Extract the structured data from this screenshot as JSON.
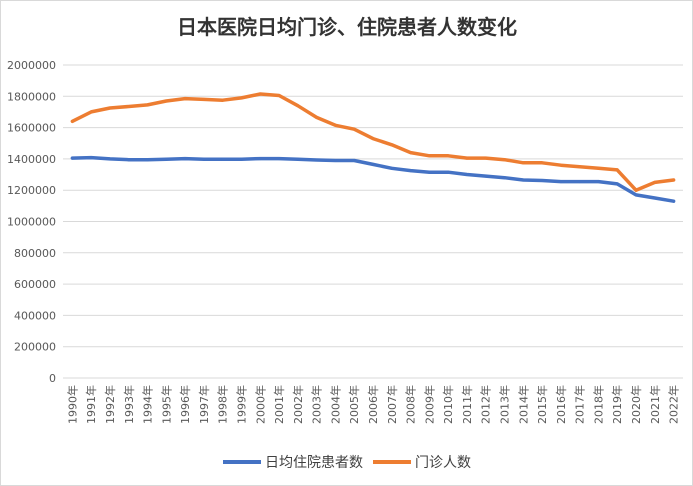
{
  "chart_data": {
    "type": "line",
    "title": "日本医院日均门诊、住院患者人数变化",
    "xlabel": "",
    "ylabel": "",
    "ylim": [
      0,
      2000000
    ],
    "yticks": [
      "0",
      "200000",
      "400000",
      "600000",
      "800000",
      "1000000",
      "1200000",
      "1400000",
      "1600000",
      "1800000",
      "2000000"
    ],
    "grid": true,
    "legend_position": "bottom",
    "categories": [
      "1990年",
      "1991年",
      "1992年",
      "1993年",
      "1994年",
      "1995年",
      "1996年",
      "1997年",
      "1998年",
      "1999年",
      "2000年",
      "2001年",
      "2002年",
      "2003年",
      "2004年",
      "2005年",
      "2006年",
      "2007年",
      "2008年",
      "2009年",
      "2010年",
      "2011年",
      "2012年",
      "2013年",
      "2014年",
      "2015年",
      "2016年",
      "2017年",
      "2018年",
      "2019年",
      "2020年",
      "2021年",
      "2022年"
    ],
    "series": [
      {
        "name": "日均住院患者数",
        "color": "#4472c4",
        "values": [
          1405000,
          1408000,
          1400000,
          1395000,
          1395000,
          1398000,
          1402000,
          1398000,
          1398000,
          1398000,
          1402000,
          1402000,
          1398000,
          1393000,
          1390000,
          1390000,
          1365000,
          1340000,
          1325000,
          1315000,
          1315000,
          1300000,
          1290000,
          1280000,
          1265000,
          1262000,
          1255000,
          1255000,
          1255000,
          1240000,
          1170000,
          1150000,
          1130000
        ]
      },
      {
        "name": "门诊人数",
        "color": "#ed7d31",
        "values": [
          1640000,
          1700000,
          1725000,
          1735000,
          1745000,
          1770000,
          1785000,
          1780000,
          1775000,
          1790000,
          1815000,
          1805000,
          1740000,
          1665000,
          1615000,
          1590000,
          1530000,
          1490000,
          1440000,
          1420000,
          1420000,
          1405000,
          1405000,
          1395000,
          1375000,
          1375000,
          1360000,
          1350000,
          1340000,
          1330000,
          1200000,
          1250000,
          1265000
        ]
      }
    ]
  }
}
